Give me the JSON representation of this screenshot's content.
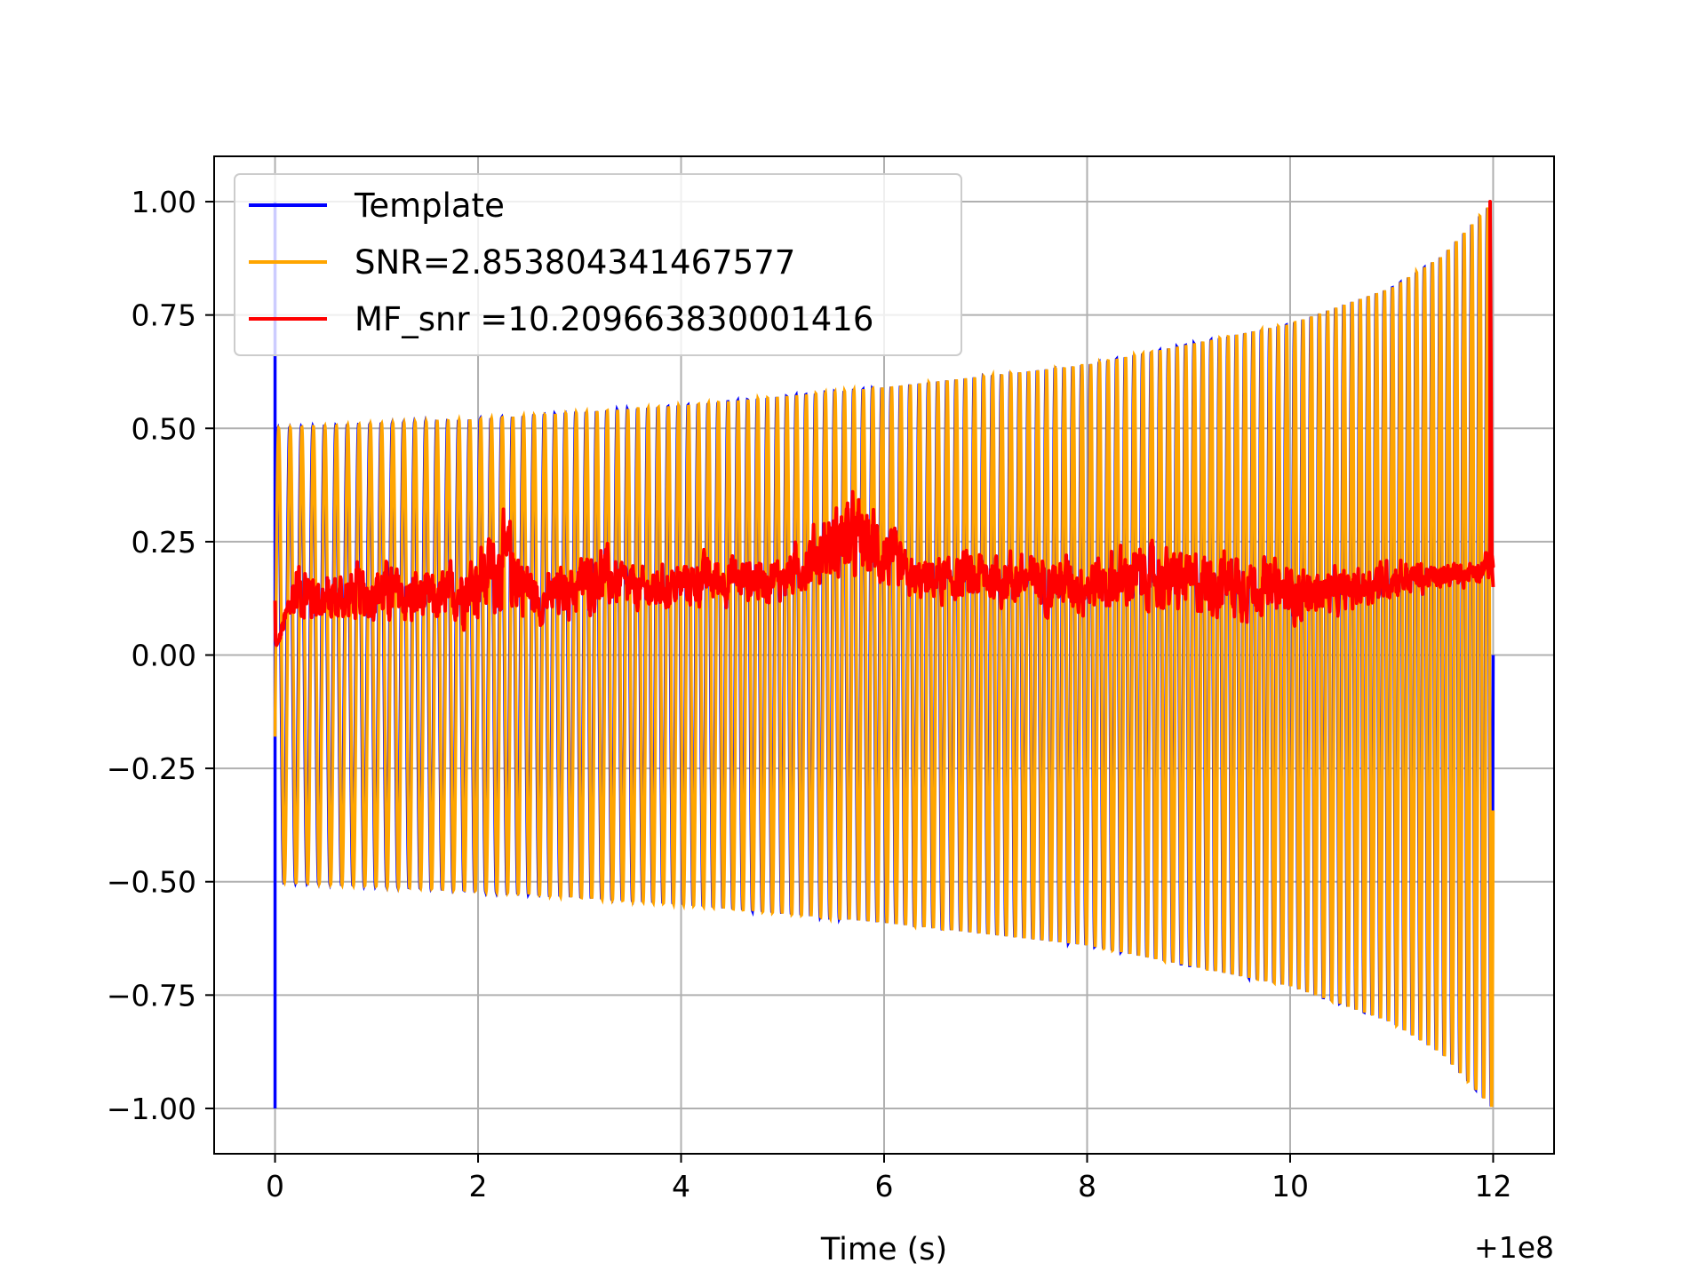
{
  "chart_data": {
    "type": "line",
    "title": "",
    "xlabel": "Time (s)",
    "ylabel": "",
    "x_offset_label": "+1e8",
    "xlim": [
      -0.6,
      12.6
    ],
    "ylim": [
      -1.1,
      1.1
    ],
    "grid": true,
    "legend_position": "upper-left",
    "x_ticks": [
      0,
      2,
      4,
      6,
      8,
      10,
      12
    ],
    "x_tick_labels": [
      "0",
      "2",
      "4",
      "6",
      "8",
      "10",
      "12"
    ],
    "y_ticks": [
      1.0,
      0.75,
      0.5,
      0.25,
      0.0,
      -0.25,
      -0.5,
      -0.75,
      -1.0
    ],
    "y_tick_labels": [
      "1.00",
      "0.75",
      "0.50",
      "0.25",
      "0.00",
      "−0.25",
      "−0.50",
      "−0.75",
      "−1.00"
    ],
    "series": [
      {
        "name": "Template",
        "color": "#0000ff",
        "kind": "chirp",
        "t_start": 0.0,
        "t_end": 12.0,
        "amplitude_points": [
          [
            0.0,
            0.5
          ],
          [
            2.0,
            0.52
          ],
          [
            4.0,
            0.55
          ],
          [
            6.0,
            0.59
          ],
          [
            8.0,
            0.64
          ],
          [
            10.0,
            0.73
          ],
          [
            11.0,
            0.81
          ],
          [
            11.5,
            0.88
          ],
          [
            12.0,
            1.0
          ]
        ],
        "cycles": 130,
        "start_spike": [
          1.0,
          -1.0
        ]
      },
      {
        "name": "SNR=2.853804341467577",
        "color": "#ffa500",
        "kind": "chirp",
        "t_start": 0.0,
        "t_end": 12.0,
        "amplitude_points": [
          [
            0.0,
            0.5
          ],
          [
            2.0,
            0.52
          ],
          [
            4.0,
            0.55
          ],
          [
            6.0,
            0.59
          ],
          [
            8.0,
            0.64
          ],
          [
            10.0,
            0.73
          ],
          [
            11.0,
            0.81
          ],
          [
            11.5,
            0.88
          ],
          [
            12.0,
            1.0
          ]
        ],
        "cycles": 130,
        "start_value": -0.18
      },
      {
        "name": "MF_snr =10.209663830001416",
        "color": "#ff0000",
        "kind": "noise",
        "t_start": 0.0,
        "t_end": 12.0,
        "envelope_points": [
          [
            0.0,
            0.0
          ],
          [
            0.2,
            0.28
          ],
          [
            0.5,
            0.22
          ],
          [
            1.0,
            0.26
          ],
          [
            1.6,
            0.22
          ],
          [
            2.3,
            0.38
          ],
          [
            2.6,
            0.2
          ],
          [
            3.2,
            0.3
          ],
          [
            3.6,
            0.22
          ],
          [
            4.2,
            0.26
          ],
          [
            5.0,
            0.25
          ],
          [
            5.6,
            0.42
          ],
          [
            5.9,
            0.39
          ],
          [
            6.3,
            0.24
          ],
          [
            7.0,
            0.28
          ],
          [
            8.0,
            0.26
          ],
          [
            8.5,
            0.3
          ],
          [
            9.0,
            0.28
          ],
          [
            9.5,
            0.29
          ],
          [
            10.0,
            0.24
          ],
          [
            10.5,
            0.22
          ],
          [
            11.0,
            0.25
          ],
          [
            11.5,
            0.22
          ],
          [
            12.0,
            0.25
          ]
        ],
        "baseline_points": [
          [
            0.0,
            0.02
          ],
          [
            2.0,
            0.02
          ],
          [
            5.5,
            0.1
          ],
          [
            8.0,
            0.05
          ],
          [
            10.0,
            0.03
          ],
          [
            12.0,
            0.15
          ]
        ],
        "end_spike": [
          11.97,
          1.0
        ]
      }
    ]
  }
}
